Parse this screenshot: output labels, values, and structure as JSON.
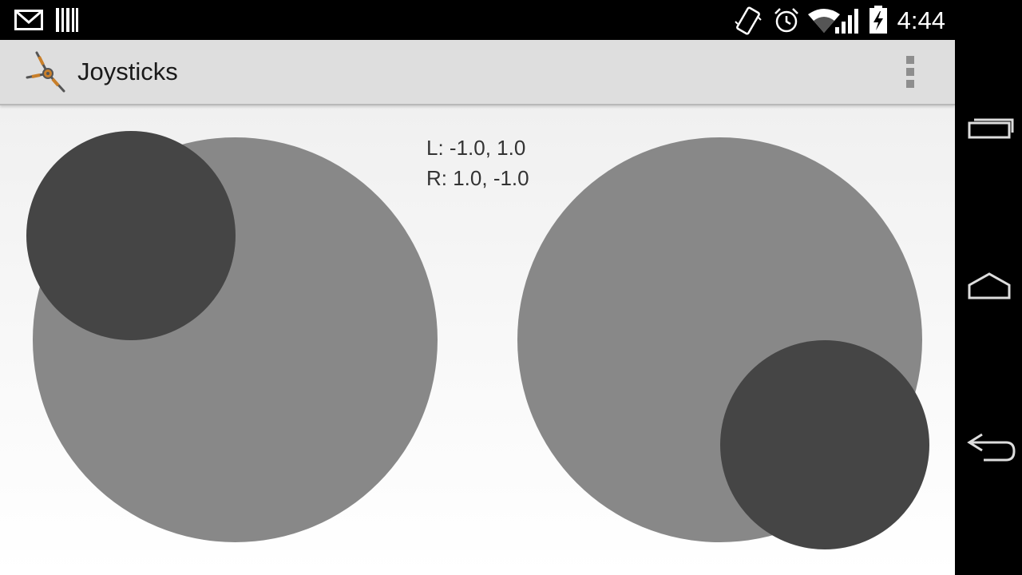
{
  "status_bar": {
    "time": "4:44",
    "left_icons": [
      "gmail-icon",
      "barcode-icon"
    ],
    "right_icons": [
      "vibrate-icon",
      "alarm-icon",
      "wifi-icon",
      "signal-icon",
      "battery-charging-icon"
    ]
  },
  "action_bar": {
    "app_icon": "propeller-icon",
    "title": "Joysticks",
    "menu_icon": "overflow-menu-icon"
  },
  "readout": {
    "left": "L: -1.0, 1.0",
    "right": "R: 1.0, -1.0"
  },
  "joysticks": {
    "left": {
      "x": -1.0,
      "y": 1.0
    },
    "right": {
      "x": 1.0,
      "y": -1.0
    }
  },
  "colors": {
    "joystick_base": "#888888",
    "joystick_knob": "#454545",
    "action_bar": "#dedede"
  },
  "nav_bar": {
    "icons": [
      "recent-apps-icon",
      "home-icon",
      "back-icon"
    ]
  }
}
